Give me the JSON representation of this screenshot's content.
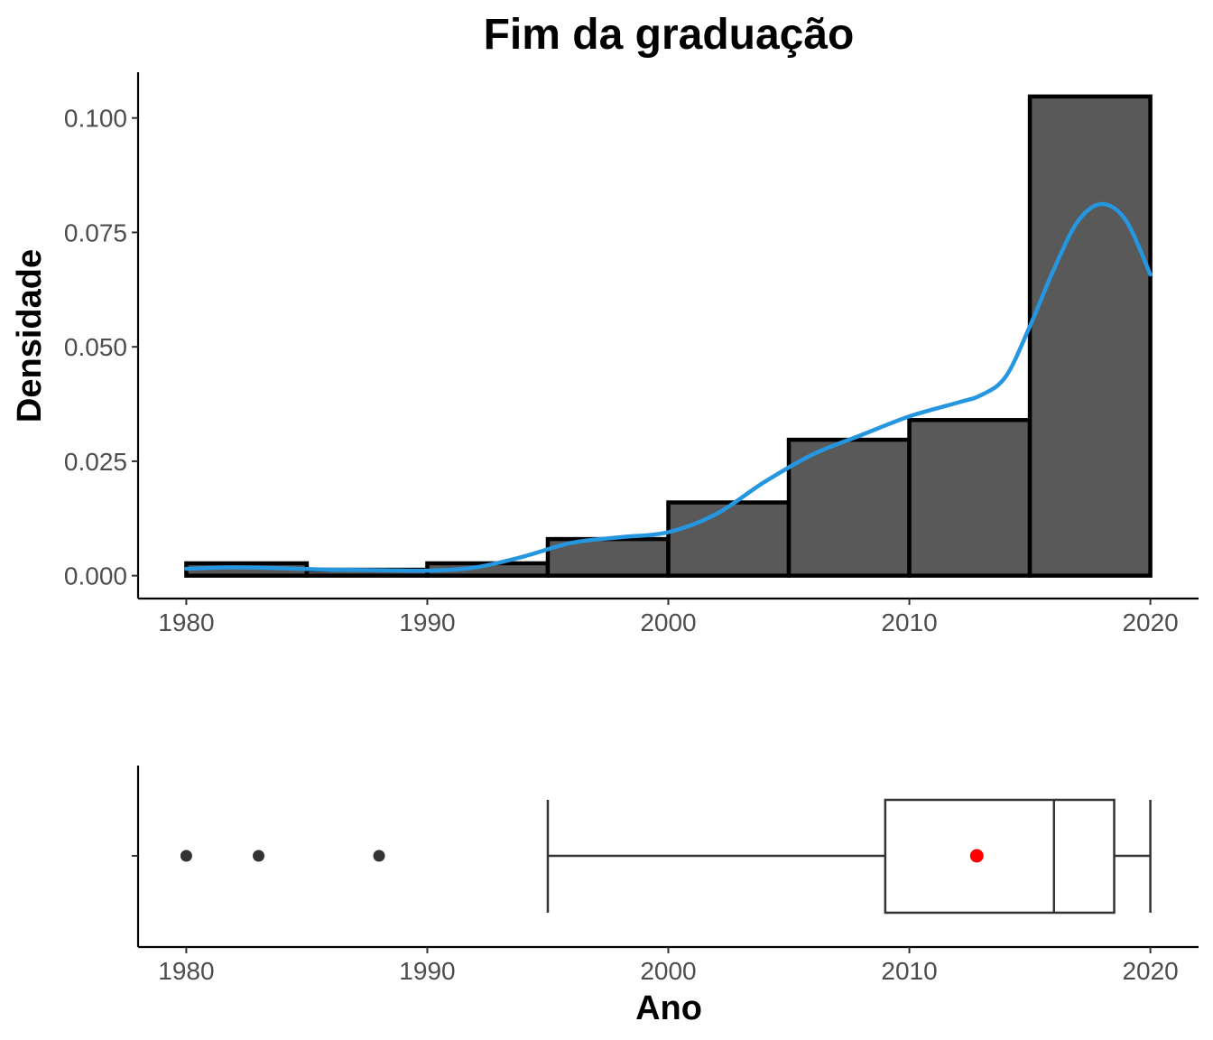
{
  "chart_data": [
    {
      "type": "histogram",
      "title": "Fim da graduação",
      "xlabel": "",
      "ylabel": "Densidade",
      "xlim": [
        1978,
        2022
      ],
      "ylim": [
        -0.005,
        0.11
      ],
      "xticks": [
        "1980",
        "1990",
        "2000",
        "2010",
        "2020"
      ],
      "yticks": [
        "0.000",
        "0.025",
        "0.050",
        "0.075",
        "0.100"
      ],
      "bins": [
        {
          "from": 1980,
          "to": 1985,
          "density": 0.0027
        },
        {
          "from": 1985,
          "to": 1990,
          "density": 0.0013
        },
        {
          "from": 1990,
          "to": 1995,
          "density": 0.0027
        },
        {
          "from": 1995,
          "to": 2000,
          "density": 0.008
        },
        {
          "from": 2000,
          "to": 2005,
          "density": 0.016
        },
        {
          "from": 2005,
          "to": 2010,
          "density": 0.0297
        },
        {
          "from": 2010,
          "to": 2015,
          "density": 0.034
        },
        {
          "from": 2015,
          "to": 2020,
          "density": 0.1047
        }
      ],
      "density_curve": {
        "color": "#2596e0",
        "x": [
          1980,
          1982,
          1984,
          1986,
          1988,
          1990,
          1992,
          1994,
          1996,
          1998,
          2000,
          2002,
          2004,
          2006,
          2008,
          2010,
          2012,
          2013,
          2014,
          2015,
          2016,
          2017,
          2018,
          2019,
          2020
        ],
        "y": [
          0.0015,
          0.0018,
          0.0016,
          0.0013,
          0.0012,
          0.0011,
          0.0018,
          0.0042,
          0.0072,
          0.0084,
          0.0095,
          0.0135,
          0.0205,
          0.0265,
          0.0307,
          0.0348,
          0.0378,
          0.0395,
          0.0435,
          0.0545,
          0.067,
          0.0775,
          0.0812,
          0.0775,
          0.0658
        ]
      }
    },
    {
      "type": "boxplot",
      "xlabel": "Ano",
      "xlim": [
        1978,
        2022
      ],
      "xticks": [
        "1980",
        "1990",
        "2000",
        "2010",
        "2020"
      ],
      "whisker_low": 1995,
      "q1": 2009,
      "median": 2016,
      "q3": 2018.5,
      "whisker_high": 2020,
      "mean": 2012.8,
      "mean_color": "#ff0000",
      "outliers": [
        1980,
        1983,
        1988
      ]
    }
  ]
}
